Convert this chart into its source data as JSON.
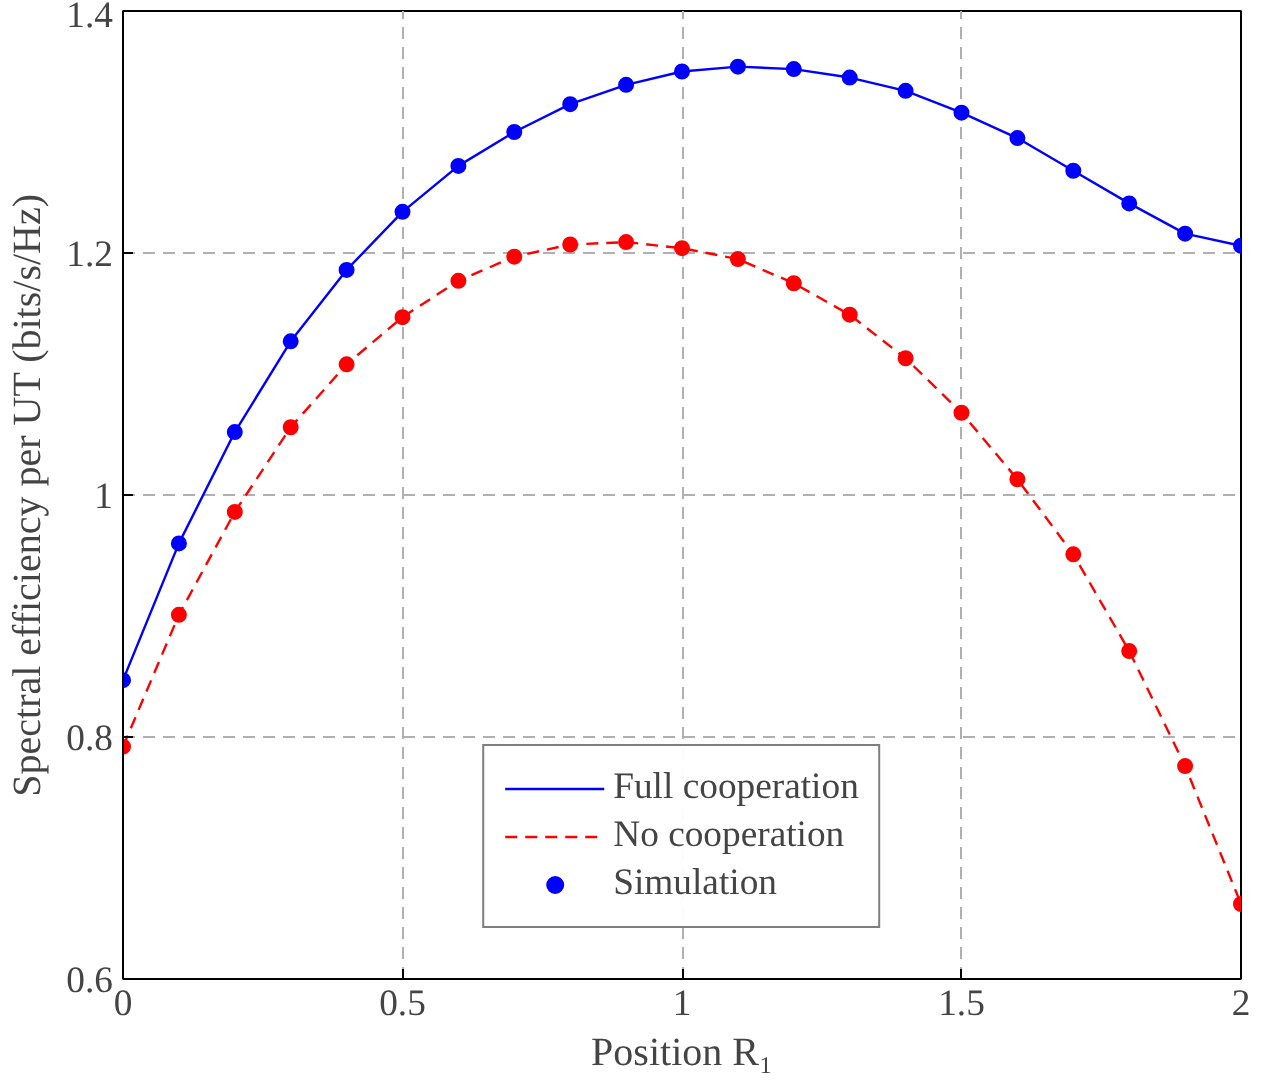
{
  "chart_data": {
    "type": "line",
    "xlabel": "Position R₁",
    "ylabel": "Spectral efficiency per UT (bits/s/Hz)",
    "xlim": [
      0,
      2
    ],
    "ylim": [
      0.6,
      1.4
    ],
    "xticks": [
      0,
      0.5,
      1,
      1.5,
      2
    ],
    "yticks": [
      0.6,
      0.8,
      1,
      1.2,
      1.4
    ],
    "grid": true,
    "legend": "bottom",
    "series": [
      {
        "name": "Full cooperation",
        "color": "#0000ff",
        "line_style": "solid",
        "x": [
          0,
          0.1,
          0.2,
          0.3,
          0.4,
          0.5,
          0.6,
          0.7,
          0.8,
          0.9,
          1.0,
          1.1,
          1.2,
          1.3,
          1.4,
          1.5,
          1.6,
          1.7,
          1.8,
          1.9,
          2.0
        ],
        "values": [
          0.847,
          0.96,
          1.052,
          1.127,
          1.186,
          1.234,
          1.272,
          1.3,
          1.323,
          1.339,
          1.35,
          1.354,
          1.352,
          1.345,
          1.334,
          1.316,
          1.295,
          1.268,
          1.241,
          1.216,
          1.206
        ]
      },
      {
        "name": "No cooperation",
        "color": "#ff0000",
        "line_style": "dashed",
        "x": [
          0,
          0.1,
          0.2,
          0.3,
          0.4,
          0.5,
          0.6,
          0.7,
          0.8,
          0.9,
          1.0,
          1.1,
          1.2,
          1.3,
          1.4,
          1.5,
          1.6,
          1.7,
          1.8,
          1.9,
          2.0
        ],
        "values": [
          0.792,
          0.901,
          0.986,
          1.056,
          1.108,
          1.147,
          1.177,
          1.197,
          1.207,
          1.209,
          1.204,
          1.195,
          1.175,
          1.149,
          1.113,
          1.068,
          1.013,
          0.951,
          0.871,
          0.776,
          0.662
        ]
      },
      {
        "name": "Simulation",
        "type": "scatter",
        "marker": "circle",
        "x": [
          0,
          0.1,
          0.2,
          0.3,
          0.4,
          0.5,
          0.6,
          0.7,
          0.8,
          0.9,
          1.0,
          1.1,
          1.2,
          1.3,
          1.4,
          1.5,
          1.6,
          1.7,
          1.8,
          1.9,
          2.0,
          0,
          0.1,
          0.2,
          0.3,
          0.4,
          0.5,
          0.6,
          0.7,
          0.8,
          0.9,
          1.0,
          1.1,
          1.2,
          1.3,
          1.4,
          1.5,
          1.6,
          1.7,
          1.8,
          1.9,
          2.0
        ],
        "values": [
          0.847,
          0.96,
          1.052,
          1.127,
          1.186,
          1.234,
          1.272,
          1.3,
          1.323,
          1.339,
          1.35,
          1.354,
          1.352,
          1.345,
          1.334,
          1.316,
          1.295,
          1.268,
          1.241,
          1.216,
          1.206,
          0.792,
          0.901,
          0.986,
          1.056,
          1.108,
          1.147,
          1.177,
          1.197,
          1.207,
          1.209,
          1.204,
          1.195,
          1.175,
          1.149,
          1.113,
          1.068,
          1.013,
          0.951,
          0.871,
          0.776,
          0.662
        ],
        "colors": [
          "#0000ff",
          "#0000ff",
          "#0000ff",
          "#0000ff",
          "#0000ff",
          "#0000ff",
          "#0000ff",
          "#0000ff",
          "#0000ff",
          "#0000ff",
          "#0000ff",
          "#0000ff",
          "#0000ff",
          "#0000ff",
          "#0000ff",
          "#0000ff",
          "#0000ff",
          "#0000ff",
          "#0000ff",
          "#0000ff",
          "#0000ff",
          "#ff0000",
          "#ff0000",
          "#ff0000",
          "#ff0000",
          "#ff0000",
          "#ff0000",
          "#ff0000",
          "#ff0000",
          "#ff0000",
          "#ff0000",
          "#ff0000",
          "#ff0000",
          "#ff0000",
          "#ff0000",
          "#ff0000",
          "#ff0000",
          "#ff0000",
          "#ff0000",
          "#ff0000",
          "#ff0000",
          "#ff0000"
        ]
      }
    ]
  }
}
